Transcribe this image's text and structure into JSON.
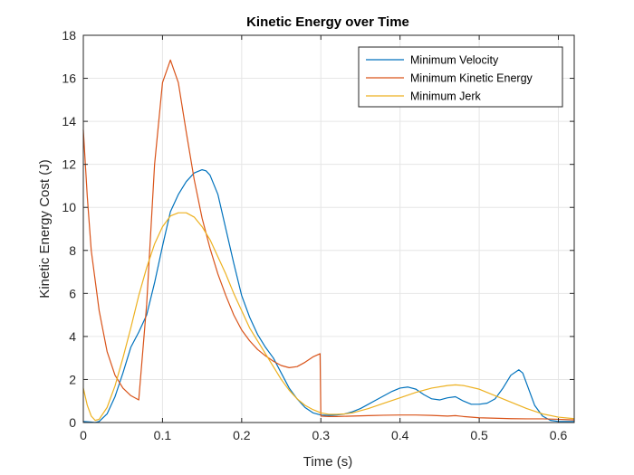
{
  "chart_data": {
    "type": "line",
    "title": "Kinetic Energy over Time",
    "xlabel": "Time (s)",
    "ylabel": "Kinetic Energy Cost (J)",
    "xlim": [
      0,
      0.62
    ],
    "ylim": [
      0,
      18
    ],
    "xticks": [
      0,
      0.1,
      0.2,
      0.3,
      0.4,
      0.5,
      0.6
    ],
    "xtick_labels": [
      "0",
      "0.1",
      "0.2",
      "0.3",
      "0.4",
      "0.5",
      "0.6"
    ],
    "yticks": [
      0,
      2,
      4,
      6,
      8,
      10,
      12,
      14,
      16,
      18
    ],
    "ytick_labels": [
      "0",
      "2",
      "4",
      "6",
      "8",
      "10",
      "12",
      "14",
      "16",
      "18"
    ],
    "grid": true,
    "legend_position": "top-right",
    "series": [
      {
        "name": "Minimum Velocity",
        "color": "#0072BD",
        "x": [
          0,
          0.01,
          0.015,
          0.02,
          0.03,
          0.04,
          0.05,
          0.06,
          0.07,
          0.08,
          0.09,
          0.1,
          0.11,
          0.12,
          0.13,
          0.14,
          0.15,
          0.155,
          0.16,
          0.17,
          0.18,
          0.19,
          0.2,
          0.21,
          0.22,
          0.23,
          0.24,
          0.25,
          0.26,
          0.27,
          0.28,
          0.29,
          0.3,
          0.31,
          0.32,
          0.33,
          0.34,
          0.35,
          0.36,
          0.37,
          0.38,
          0.39,
          0.4,
          0.41,
          0.42,
          0.43,
          0.44,
          0.45,
          0.46,
          0.47,
          0.48,
          0.49,
          0.5,
          0.51,
          0.52,
          0.53,
          0.54,
          0.55,
          0.555,
          0.56,
          0.57,
          0.58,
          0.59,
          0.6,
          0.61,
          0.62
        ],
        "values": [
          0.05,
          0.02,
          0.0,
          0.05,
          0.4,
          1.2,
          2.3,
          3.5,
          4.2,
          5.0,
          6.5,
          8.2,
          9.8,
          10.6,
          11.2,
          11.6,
          11.75,
          11.7,
          11.5,
          10.6,
          9.0,
          7.4,
          5.9,
          4.9,
          4.1,
          3.5,
          3.0,
          2.3,
          1.6,
          1.1,
          0.7,
          0.45,
          0.35,
          0.33,
          0.35,
          0.4,
          0.5,
          0.65,
          0.85,
          1.05,
          1.25,
          1.45,
          1.6,
          1.65,
          1.55,
          1.3,
          1.1,
          1.05,
          1.15,
          1.2,
          1.0,
          0.85,
          0.85,
          0.9,
          1.1,
          1.6,
          2.2,
          2.45,
          2.3,
          1.8,
          0.8,
          0.3,
          0.1,
          0.05,
          0.05,
          0.05
        ]
      },
      {
        "name": "Minimum Kinetic Energy",
        "color": "#D95319",
        "x": [
          0,
          0.005,
          0.01,
          0.02,
          0.03,
          0.04,
          0.05,
          0.06,
          0.07,
          0.08,
          0.09,
          0.1,
          0.11,
          0.12,
          0.13,
          0.14,
          0.15,
          0.16,
          0.17,
          0.18,
          0.19,
          0.2,
          0.21,
          0.22,
          0.23,
          0.24,
          0.25,
          0.26,
          0.27,
          0.28,
          0.29,
          0.299,
          0.3,
          0.31,
          0.32,
          0.34,
          0.36,
          0.38,
          0.4,
          0.42,
          0.44,
          0.46,
          0.47,
          0.48,
          0.5,
          0.52,
          0.54,
          0.56,
          0.58,
          0.6,
          0.62
        ],
        "values": [
          13.6,
          10.5,
          8.0,
          5.2,
          3.3,
          2.2,
          1.6,
          1.25,
          1.05,
          5.5,
          12.0,
          15.8,
          16.85,
          15.8,
          13.5,
          11.3,
          9.5,
          8.1,
          6.9,
          5.9,
          5.0,
          4.3,
          3.8,
          3.4,
          3.1,
          2.85,
          2.65,
          2.55,
          2.6,
          2.8,
          3.05,
          3.2,
          0.3,
          0.28,
          0.28,
          0.3,
          0.32,
          0.34,
          0.35,
          0.35,
          0.33,
          0.3,
          0.32,
          0.28,
          0.22,
          0.2,
          0.18,
          0.17,
          0.17,
          0.15,
          0.12
        ]
      },
      {
        "name": "Minimum Jerk",
        "color": "#EDB120",
        "x": [
          0,
          0.005,
          0.01,
          0.015,
          0.02,
          0.03,
          0.04,
          0.05,
          0.06,
          0.07,
          0.08,
          0.09,
          0.1,
          0.11,
          0.12,
          0.13,
          0.14,
          0.15,
          0.16,
          0.17,
          0.18,
          0.19,
          0.2,
          0.21,
          0.22,
          0.23,
          0.24,
          0.25,
          0.26,
          0.27,
          0.28,
          0.29,
          0.3,
          0.31,
          0.32,
          0.33,
          0.34,
          0.35,
          0.36,
          0.38,
          0.4,
          0.42,
          0.44,
          0.46,
          0.47,
          0.48,
          0.5,
          0.52,
          0.54,
          0.56,
          0.58,
          0.6,
          0.62
        ],
        "values": [
          1.6,
          0.8,
          0.3,
          0.1,
          0.15,
          0.7,
          1.7,
          3.0,
          4.4,
          5.9,
          7.2,
          8.3,
          9.1,
          9.6,
          9.75,
          9.75,
          9.55,
          9.1,
          8.5,
          7.7,
          6.9,
          6.0,
          5.2,
          4.4,
          3.8,
          3.2,
          2.6,
          2.0,
          1.5,
          1.1,
          0.8,
          0.6,
          0.45,
          0.38,
          0.38,
          0.4,
          0.45,
          0.55,
          0.65,
          0.9,
          1.15,
          1.4,
          1.6,
          1.72,
          1.75,
          1.72,
          1.55,
          1.25,
          0.95,
          0.65,
          0.4,
          0.25,
          0.18
        ]
      }
    ]
  }
}
